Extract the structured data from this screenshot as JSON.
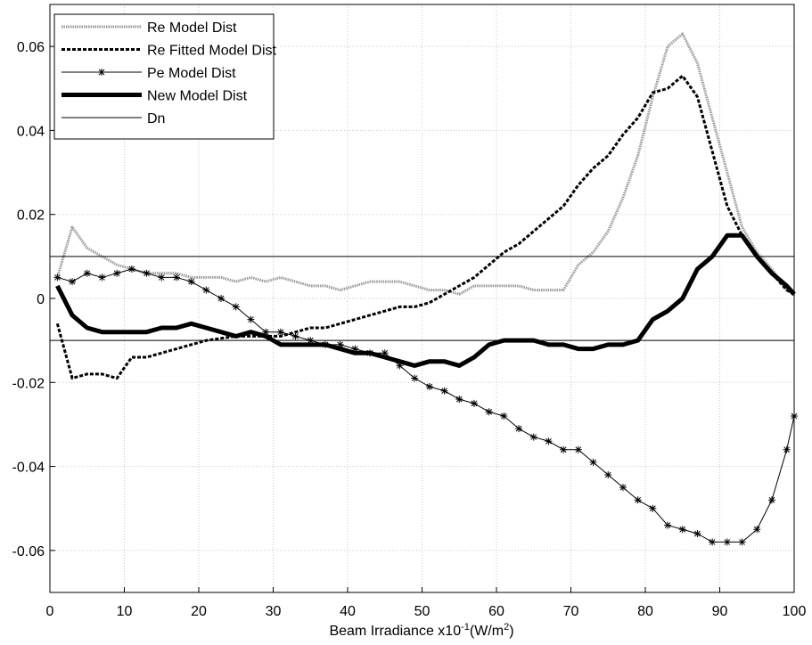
{
  "chart_data": {
    "type": "line",
    "xlabel_parts": [
      "Beam Irradiance x10",
      "-1",
      "(W/m",
      "2",
      ")"
    ],
    "xlim": [
      0,
      100
    ],
    "xticks": [
      0,
      10,
      20,
      30,
      40,
      50,
      60,
      70,
      80,
      90,
      100
    ],
    "ylim": [
      -0.07,
      0.07
    ],
    "yticks": [
      -0.06,
      -0.04,
      -0.02,
      0,
      0.02,
      0.04,
      0.06
    ],
    "grid": true,
    "legend": "upper left",
    "x": [
      1,
      3,
      5,
      7,
      9,
      11,
      13,
      15,
      17,
      19,
      21,
      23,
      25,
      27,
      29,
      31,
      33,
      35,
      37,
      39,
      41,
      43,
      45,
      47,
      49,
      51,
      53,
      55,
      57,
      59,
      61,
      63,
      65,
      67,
      69,
      71,
      73,
      75,
      77,
      79,
      81,
      83,
      85,
      87,
      89,
      91,
      93,
      95,
      97,
      99,
      100
    ],
    "series": [
      {
        "name": "Re Model Dist",
        "color": "#999999",
        "width": 3,
        "dash": "1.5 1",
        "values": [
          0.005,
          0.017,
          0.012,
          0.01,
          0.008,
          0.007,
          0.006,
          0.006,
          0.006,
          0.005,
          0.005,
          0.005,
          0.004,
          0.005,
          0.004,
          0.005,
          0.004,
          0.003,
          0.003,
          0.002,
          0.003,
          0.004,
          0.004,
          0.004,
          0.003,
          0.002,
          0.002,
          0.001,
          0.003,
          0.003,
          0.003,
          0.003,
          0.002,
          0.002,
          0.002,
          0.008,
          0.011,
          0.016,
          0.024,
          0.034,
          0.048,
          0.06,
          0.063,
          0.056,
          0.043,
          0.03,
          0.017,
          0.011,
          0.007,
          0.002,
          0.001
        ]
      },
      {
        "name": "Re Fitted Model Dist",
        "color": "#000000",
        "width": 3,
        "dash": "4 2",
        "values": [
          -0.006,
          -0.019,
          -0.018,
          -0.018,
          -0.019,
          -0.014,
          -0.014,
          -0.013,
          -0.012,
          -0.011,
          -0.01,
          -0.0095,
          -0.009,
          -0.009,
          -0.009,
          -0.009,
          -0.008,
          -0.007,
          -0.007,
          -0.006,
          -0.005,
          -0.004,
          -0.003,
          -0.002,
          -0.002,
          -0.001,
          0.001,
          0.003,
          0.005,
          0.008,
          0.011,
          0.013,
          0.016,
          0.019,
          0.022,
          0.027,
          0.031,
          0.034,
          0.039,
          0.043,
          0.049,
          0.05,
          0.053,
          0.048,
          0.035,
          0.022,
          0.015,
          0.01,
          0.006,
          0.002,
          0.001
        ]
      },
      {
        "name": "Pe Model Dist",
        "color": "#000000",
        "width": 1,
        "marker": "asterisk",
        "values": [
          0.005,
          0.004,
          0.006,
          0.005,
          0.006,
          0.007,
          0.006,
          0.005,
          0.005,
          0.004,
          0.002,
          0.0,
          -0.002,
          -0.005,
          -0.008,
          -0.008,
          -0.009,
          -0.01,
          -0.011,
          -0.011,
          -0.012,
          -0.013,
          -0.013,
          -0.016,
          -0.019,
          -0.021,
          -0.022,
          -0.024,
          -0.025,
          -0.027,
          -0.028,
          -0.031,
          -0.033,
          -0.034,
          -0.036,
          -0.036,
          -0.039,
          -0.042,
          -0.045,
          -0.048,
          -0.05,
          -0.054,
          -0.055,
          -0.056,
          -0.058,
          -0.058,
          -0.058,
          -0.055,
          -0.048,
          -0.036,
          -0.028
        ]
      },
      {
        "name": "New Model Dist",
        "color": "#000000",
        "width": 5,
        "values": [
          0.003,
          -0.004,
          -0.007,
          -0.008,
          -0.008,
          -0.008,
          -0.008,
          -0.007,
          -0.007,
          -0.006,
          -0.007,
          -0.008,
          -0.009,
          -0.008,
          -0.009,
          -0.011,
          -0.011,
          -0.011,
          -0.011,
          -0.012,
          -0.013,
          -0.013,
          -0.014,
          -0.015,
          -0.016,
          -0.015,
          -0.015,
          -0.016,
          -0.014,
          -0.011,
          -0.01,
          -0.01,
          -0.01,
          -0.011,
          -0.011,
          -0.012,
          -0.012,
          -0.011,
          -0.011,
          -0.01,
          -0.005,
          -0.003,
          0.0,
          0.007,
          0.01,
          0.015,
          0.015,
          0.01,
          0.006,
          0.003,
          0.001
        ]
      },
      {
        "name": "Dn",
        "color": "#000000",
        "width": 1,
        "levels": [
          0.01,
          -0.01
        ]
      }
    ]
  }
}
